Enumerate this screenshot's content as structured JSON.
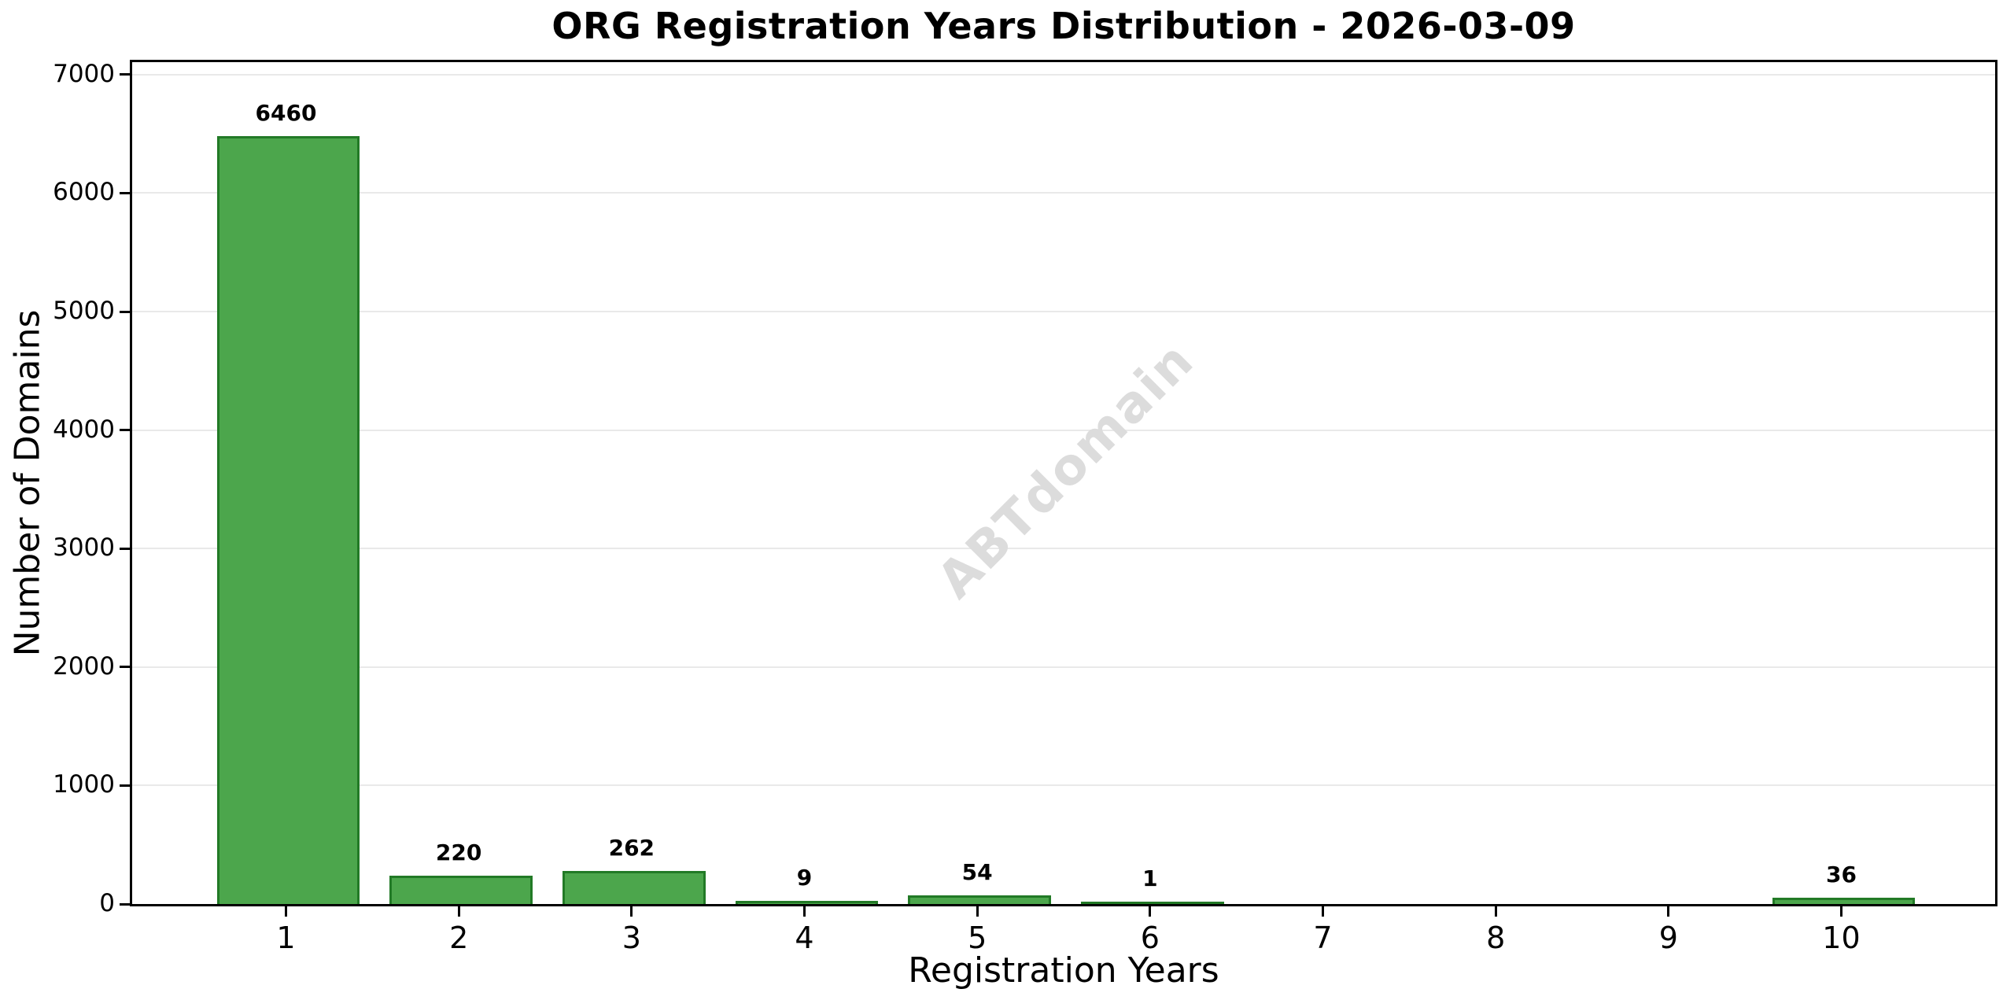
{
  "chart_data": {
    "type": "bar",
    "title": "ORG Registration Years Distribution - 2026-03-09",
    "xlabel": "Registration Years",
    "ylabel": "Number of Domains",
    "categories": [
      "1",
      "2",
      "3",
      "4",
      "5",
      "6",
      "7",
      "8",
      "9",
      "10"
    ],
    "values": [
      6460,
      220,
      262,
      9,
      54,
      1,
      0,
      0,
      0,
      36
    ],
    "bar_labels": [
      "6460",
      "220",
      "262",
      "9",
      "54",
      "1",
      "",
      "",
      "",
      "36"
    ],
    "yticks": [
      0,
      1000,
      2000,
      3000,
      4000,
      5000,
      6000,
      7000
    ],
    "ylim": [
      0,
      7105
    ],
    "xlim": [
      0.11,
      10.89
    ],
    "bar_width_fraction": 0.8,
    "grid": "horizontal",
    "legend": "none",
    "watermark": "ABTdomain",
    "colors": {
      "bar_fill": "#4ca64c",
      "bar_edge": "#227a26",
      "grid": "#e9e9e9",
      "watermark": "#dcdcdc",
      "text": "#000000",
      "background": "#ffffff"
    }
  }
}
